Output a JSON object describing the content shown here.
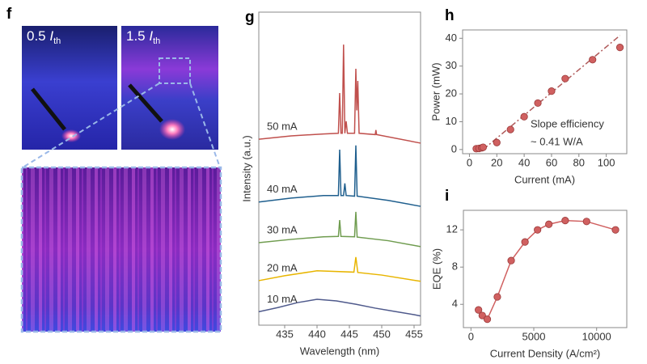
{
  "panels": {
    "f": {
      "letter": "f",
      "photos": [
        {
          "number": "0.5",
          "symbol": "I",
          "subscript": "th"
        },
        {
          "number": "1.5",
          "symbol": "I",
          "subscript": "th"
        }
      ]
    }
  },
  "chart_data": [
    {
      "type": "line",
      "panel_label": "g",
      "xlabel": "Wavelength (nm)",
      "ylabel": "Intensity (a.u.)",
      "xlim": [
        431,
        456
      ],
      "xticks": [
        435,
        440,
        445,
        450,
        455
      ],
      "ylim": [
        4.4,
        100
      ],
      "series": [
        {
          "name": "50 mA",
          "color": "#c0504d",
          "x": [
            431,
            436,
            441,
            443.3,
            443.5,
            443.7,
            443.9,
            444.1,
            444.3,
            444.5,
            444.7,
            445.8,
            446,
            446.15,
            446.3,
            446.5,
            449,
            449.1,
            449.2,
            456
          ],
          "values": [
            61.2,
            62.2,
            62.8,
            63,
            75.3,
            63,
            63,
            90.1,
            63,
            66.7,
            63,
            63,
            82.7,
            70,
            79,
            63,
            62.6,
            64,
            62.6,
            60
          ]
        },
        {
          "name": "40 mA",
          "color": "#1f5f8e",
          "x": [
            431,
            436,
            441,
            443.3,
            443.5,
            443.7,
            444.1,
            444.3,
            444.5,
            445.8,
            446,
            446.2,
            451,
            456
          ],
          "values": [
            42,
            43.2,
            44,
            44,
            58,
            44,
            44,
            47.7,
            44,
            43.8,
            59.3,
            43.8,
            42.5,
            40.7
          ]
        },
        {
          "name": "30 mA",
          "color": "#6f9c4f",
          "x": [
            431,
            436,
            441,
            443.3,
            443.5,
            443.7,
            445.8,
            446,
            446.2,
            451,
            456
          ],
          "values": [
            29.6,
            30.6,
            31.4,
            31.5,
            36.5,
            31.5,
            31.4,
            39,
            31.3,
            30.2,
            28.4
          ]
        },
        {
          "name": "20 mA",
          "color": "#e8b500",
          "x": [
            431,
            435,
            440,
            445.7,
            446,
            446.3,
            450,
            456
          ],
          "values": [
            18,
            19.5,
            21,
            20.6,
            25.2,
            20.5,
            19.7,
            17.8
          ]
        },
        {
          "name": "10 mA",
          "color": "#4f5a8c",
          "x": [
            431,
            434,
            437,
            440,
            443,
            446,
            449,
            452,
            455,
            456
          ],
          "values": [
            8.5,
            9.8,
            11.3,
            12.3,
            11.8,
            10.8,
            9.6,
            8.6,
            7.6,
            7.2
          ]
        }
      ]
    },
    {
      "type": "scatter",
      "panel_label": "h",
      "xlabel": "Current (mA)",
      "ylabel": "Power (mW)",
      "xlim": [
        -5,
        115
      ],
      "xticks": [
        0,
        20,
        40,
        60,
        80,
        100
      ],
      "ylim": [
        -1.5,
        43
      ],
      "yticks": [
        0,
        10,
        20,
        30,
        40
      ],
      "color": "#d06060",
      "x": [
        5,
        7,
        9,
        10,
        20,
        30,
        40,
        50,
        60,
        70,
        90,
        110
      ],
      "values": [
        0.3,
        0.4,
        0.6,
        0.8,
        2.5,
        7.2,
        11.8,
        16.7,
        21,
        25.5,
        32.3,
        36.7
      ],
      "fit": {
        "x": [
          10,
          110
        ],
        "values": [
          0,
          41
        ],
        "color": "#b05a5a"
      },
      "annotations": [
        "Slope efficiency",
        "~ 0.41 W/A"
      ]
    },
    {
      "type": "line",
      "panel_label": "i",
      "xlabel": "Current Density (A/cm²)",
      "ylabel": "EQE (%)",
      "xlim": [
        -600,
        12400
      ],
      "xticks": [
        0,
        5000,
        10000
      ],
      "ylim": [
        1.5,
        14.1
      ],
      "yticks": [
        4,
        8,
        12
      ],
      "color": "#d06060",
      "markers": true,
      "x": [
        600,
        900,
        1300,
        2100,
        3200,
        4300,
        5300,
        6200,
        7500,
        9200,
        11500
      ],
      "values": [
        3.4,
        2.8,
        2.4,
        4.8,
        8.7,
        10.7,
        12,
        12.6,
        13,
        12.9,
        12
      ]
    }
  ]
}
